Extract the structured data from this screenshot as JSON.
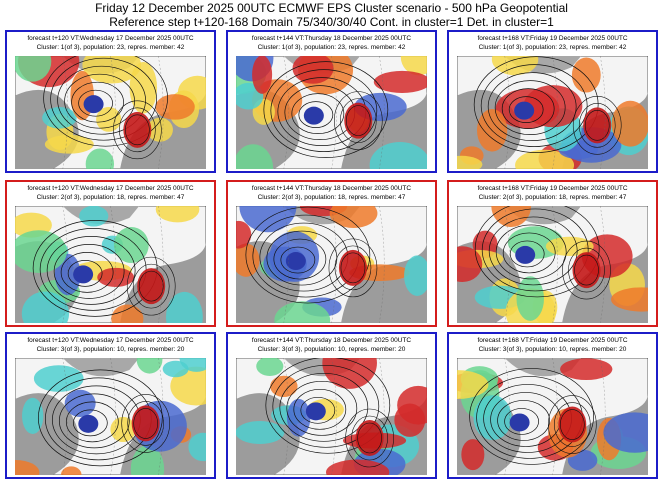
{
  "header": {
    "line1": "Friday 12 December 2025 00UTC ECMWF EPS Cluster scenario - 500 hPa Geopotential",
    "line2": "Reference step t+120-168 Domain 75/340/30/40 Cont. in cluster=1 Det. in cluster=1"
  },
  "rows": [
    {
      "border_color": "#1c1cc8",
      "panels": [
        {
          "forecast": "forecast t+120 VT:Wednesday 17 December 2025 00UTC",
          "cluster": "Cluster: 1(of 3), population: 23, repres. member: 42"
        },
        {
          "forecast": "forecast t+144 VT:Thursday 18 December 2025 00UTC",
          "cluster": "Cluster: 1(of 3), population: 23, repres. member: 42"
        },
        {
          "forecast": "forecast t+168 VT:Friday 19 December 2025 00UTC",
          "cluster": "Cluster: 1(of 3), population: 23, repres. member: 42"
        }
      ]
    },
    {
      "border_color": "#d41c1c",
      "panels": [
        {
          "forecast": "forecast t+120 VT:Wednesday 17 December 2025 00UTC",
          "cluster": "Cluster: 2(of 3), population: 18, repres. member: 47"
        },
        {
          "forecast": "forecast t+144 VT:Thursday 18 December 2025 00UTC",
          "cluster": "Cluster: 2(of 3), population: 18, repres. member: 47"
        },
        {
          "forecast": "forecast t+168 VT:Friday 19 December 2025 00UTC",
          "cluster": "Cluster: 2(of 3), population: 18, repres. member: 47"
        }
      ]
    },
    {
      "border_color": "#1c1cc8",
      "panels": [
        {
          "forecast": "forecast t+120 VT:Wednesday 17 December 2025 00UTC",
          "cluster": "Cluster: 3(of 3), population: 10, repres. member: 20"
        },
        {
          "forecast": "forecast t+144 VT:Thursday 18 December 2025 00UTC",
          "cluster": "Cluster: 3(of 3), population: 10, repres. member: 20"
        },
        {
          "forecast": "forecast t+168 VT:Friday 19 December 2025 00UTC",
          "cluster": "Cluster: 3(of 3), population: 10, repres. member: 20"
        }
      ]
    }
  ]
}
